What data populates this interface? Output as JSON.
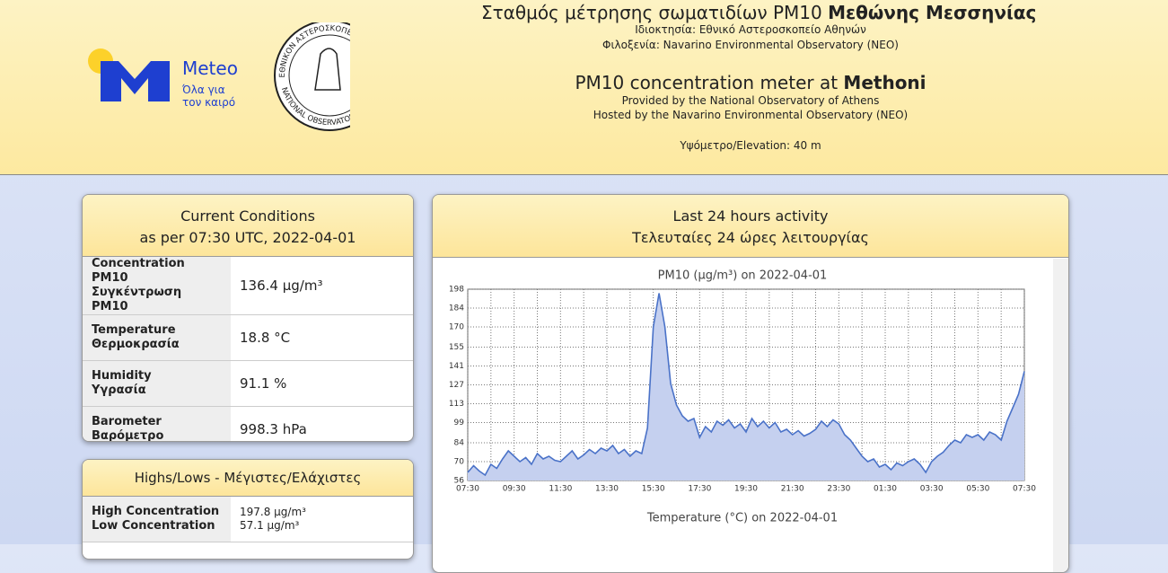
{
  "header": {
    "title_greek": "Σταθμός μέτρησης σωματιδίων PM10",
    "title_greek_bold": "Μεθώνης Μεσσηνίας",
    "owner": "Ιδιοκτησία: Εθνικό Αστεροσκοπείο Αθηνών",
    "host": "Φιλοξενία: Navarino Environmental Observatory (NEO)",
    "title_en": "PM10 concentration meter at",
    "title_en_bold": "Methoni",
    "provided": "Provided by the National Observatory of Athens",
    "hosted": "Hosted by the Navarino Environmental Observatory (NEO)",
    "elevation": "Υψόμετρο/Elevation: 40 m",
    "logo_meteo": "Meteo",
    "logo_slogan_1": "Όλα για",
    "logo_slogan_2": "τον καιρό",
    "seal_top": "ΕΘΝΙΚΟΝ ΑΣΤΕΡΟΣΚΟΠΕΙΟΝ ΑΘΗΝΩΝ",
    "seal_bottom": "NATIONAL OBSERVATORY ATHENS"
  },
  "current": {
    "title": "Current Conditions",
    "subtitle": "as per 07:30 UTC, 2022-04-01",
    "rows": [
      [
        "Concentration PM10",
        "Συγκέντρωση PM10",
        "136.4 μg/m³"
      ],
      [
        "Temperature",
        "Θερμοκρασία",
        "18.8 °C"
      ],
      [
        "Humidity",
        "Υγρασία",
        "91.1 %"
      ],
      [
        "Barometer",
        "Βαρόμετρο",
        "998.3 hPa"
      ]
    ]
  },
  "highs": {
    "title": "Highs/Lows - Μέγιστες/Ελάχιστες",
    "rows": [
      [
        "High Concentration",
        "197.8 μg/m³"
      ],
      [
        "Low Concentration",
        "57.1 μg/m³"
      ]
    ]
  },
  "activity": {
    "title": "Last 24 hours activity",
    "subtitle": "Τελευταίες 24 ώρες λειτουργίας"
  },
  "chart_data": [
    {
      "type": "area",
      "title": "PM10 (μg/m³) on 2022-04-01",
      "color": "#4a72c8",
      "fill": "#c5d0ef",
      "grid": true,
      "x": [
        "07:30",
        "07:45",
        "08:00",
        "08:15",
        "08:30",
        "08:45",
        "09:00",
        "09:15",
        "09:30",
        "09:45",
        "10:00",
        "10:15",
        "10:30",
        "10:45",
        "11:00",
        "11:15",
        "11:30",
        "11:45",
        "12:00",
        "12:15",
        "12:30",
        "12:45",
        "13:00",
        "13:15",
        "13:30",
        "13:45",
        "14:00",
        "14:15",
        "14:30",
        "14:45",
        "15:00",
        "15:15",
        "15:30",
        "15:45",
        "16:00",
        "16:15",
        "16:30",
        "16:45",
        "17:00",
        "17:15",
        "17:30",
        "17:45",
        "18:00",
        "18:15",
        "18:30",
        "18:45",
        "19:00",
        "19:15",
        "19:30",
        "19:45",
        "20:00",
        "20:15",
        "20:30",
        "20:45",
        "21:00",
        "21:15",
        "21:30",
        "21:45",
        "22:00",
        "22:15",
        "22:30",
        "22:45",
        "23:00",
        "23:15",
        "23:30",
        "23:45",
        "00:00",
        "00:15",
        "00:30",
        "00:45",
        "01:00",
        "01:15",
        "01:30",
        "01:45",
        "02:00",
        "02:15",
        "02:30",
        "02:45",
        "03:00",
        "03:15",
        "03:30",
        "03:45",
        "04:00",
        "04:15",
        "04:30",
        "04:45",
        "05:00",
        "05:15",
        "05:30",
        "05:45",
        "06:00",
        "06:15",
        "06:30",
        "06:45",
        "07:00",
        "07:15",
        "07:30"
      ],
      "values": [
        62,
        67,
        63,
        60,
        68,
        65,
        72,
        78,
        74,
        70,
        73,
        68,
        76,
        72,
        74,
        71,
        70,
        74,
        78,
        72,
        75,
        79,
        76,
        80,
        78,
        82,
        76,
        79,
        74,
        78,
        76,
        95,
        170,
        195,
        170,
        128,
        112,
        104,
        100,
        102,
        88,
        96,
        92,
        100,
        97,
        101,
        95,
        98,
        92,
        102,
        96,
        100,
        95,
        99,
        92,
        94,
        90,
        93,
        89,
        91,
        94,
        100,
        96,
        101,
        98,
        90,
        86,
        80,
        74,
        70,
        72,
        66,
        68,
        64,
        69,
        67,
        70,
        72,
        68,
        62,
        70,
        74,
        77,
        82,
        86,
        84,
        90,
        88,
        90,
        86,
        92,
        90,
        86,
        100,
        110,
        120,
        137
      ],
      "ylim": [
        56,
        198
      ],
      "yticks": [
        56,
        70,
        84,
        99,
        113,
        127,
        141,
        155,
        170,
        184,
        198
      ]
    },
    {
      "type": "line",
      "title": "Temperature (°C) on 2022-04-01"
    }
  ]
}
